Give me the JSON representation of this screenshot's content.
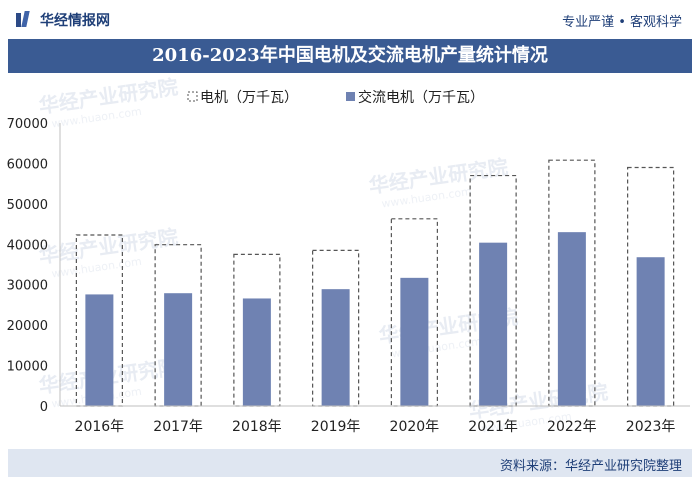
{
  "header": {
    "brand": "华经情报网",
    "slogan": "专业严谨 • 客观科学"
  },
  "footer": {
    "source": "资料来源：华经产业研究院整理"
  },
  "watermarks": [
    "华经产业研究院",
    "www.huaon.com"
  ],
  "colors": {
    "title_bg": "#3a5b93",
    "bar_fill": "#6f82b2",
    "dashed_stroke": "#555555",
    "footer_bg": "#dfe6f1"
  },
  "chart_data": {
    "type": "bar",
    "title": "2016-2023年中国电机及交流电机产量统计情况",
    "categories": [
      "2016年",
      "2017年",
      "2018年",
      "2019年",
      "2020年",
      "2021年",
      "2022年",
      "2023年"
    ],
    "series": [
      {
        "name": "电机（万千瓦）",
        "style": "dashed-outline",
        "values": [
          42300,
          39900,
          37500,
          38500,
          46300,
          57000,
          60800,
          59000
        ]
      },
      {
        "name": "交流电机（万千瓦）",
        "style": "filled",
        "values": [
          27600,
          27900,
          26600,
          28900,
          31700,
          40400,
          43000,
          36800
        ]
      }
    ],
    "ylim": [
      0,
      70000
    ],
    "yticks": [
      "0",
      "10000",
      "20000",
      "30000",
      "40000",
      "50000",
      "60000",
      "70000"
    ],
    "grid": false,
    "legend": "top-center"
  }
}
